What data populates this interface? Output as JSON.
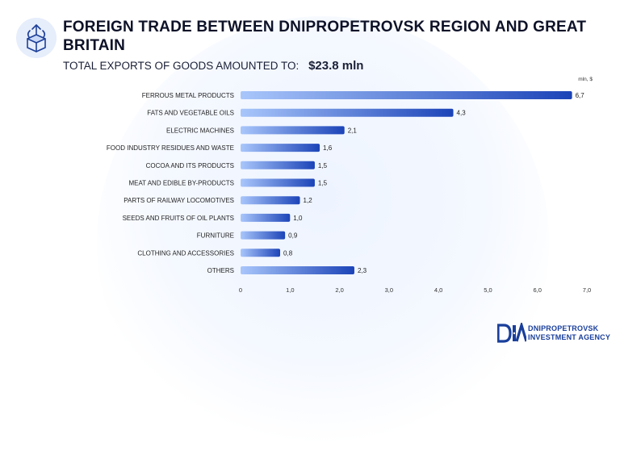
{
  "header": {
    "title": "FOREIGN TRADE BETWEEN DNIPROPETROVSK REGION AND GREAT BRITAIN",
    "subtitle_label": "TOTAL EXPORTS OF GOODS AMOUNTED TO:",
    "subtitle_value": "$23.8 mln"
  },
  "colors": {
    "bar_start": "#a9c6fb",
    "bar_end": "#1c44b8",
    "tick_text": "#333333",
    "label_text": "#222222"
  },
  "chart_data": {
    "type": "bar",
    "orientation": "horizontal",
    "unit_label": "mln, $",
    "categories": [
      "FERROUS METAL PRODUCTS",
      "FATS AND VEGETABLE OILS",
      "ELECTRIC MACHINES",
      "FOOD INDUSTRY RESIDUES AND WASTE",
      "COCOA AND ITS PRODUCTS",
      "MEAT AND EDIBLE BY-PRODUCTS",
      "PARTS OF RAILWAY LOCOMOTIVES",
      "SEEDS AND FRUITS OF OIL PLANTS",
      "FURNITURE",
      "CLOTHING AND ACCESSORIES",
      "OTHERS"
    ],
    "values": [
      6.7,
      4.3,
      2.1,
      1.6,
      1.5,
      1.5,
      1.2,
      1.0,
      0.9,
      0.8,
      2.3
    ],
    "value_labels": [
      "6,7",
      "4,3",
      "2,1",
      "1,6",
      "1,5",
      "1,5",
      "1,2",
      "1,0",
      "0,9",
      "0,8",
      "2,3"
    ],
    "xlim": [
      0,
      7
    ],
    "x_ticks": [
      0,
      1,
      2,
      3,
      4,
      5,
      6,
      7
    ],
    "x_tick_labels": [
      "0",
      "1,0",
      "2,0",
      "3,0",
      "4,0",
      "5,0",
      "6,0",
      "7,0"
    ],
    "grid": false,
    "legend": "none"
  },
  "footer": {
    "logo_lines": [
      "DNIPROPETROVSK",
      "INVESTMENT AGENCY"
    ],
    "logo_mark": "DIA"
  },
  "icons": {
    "header_icon": "trade-box-icon"
  }
}
